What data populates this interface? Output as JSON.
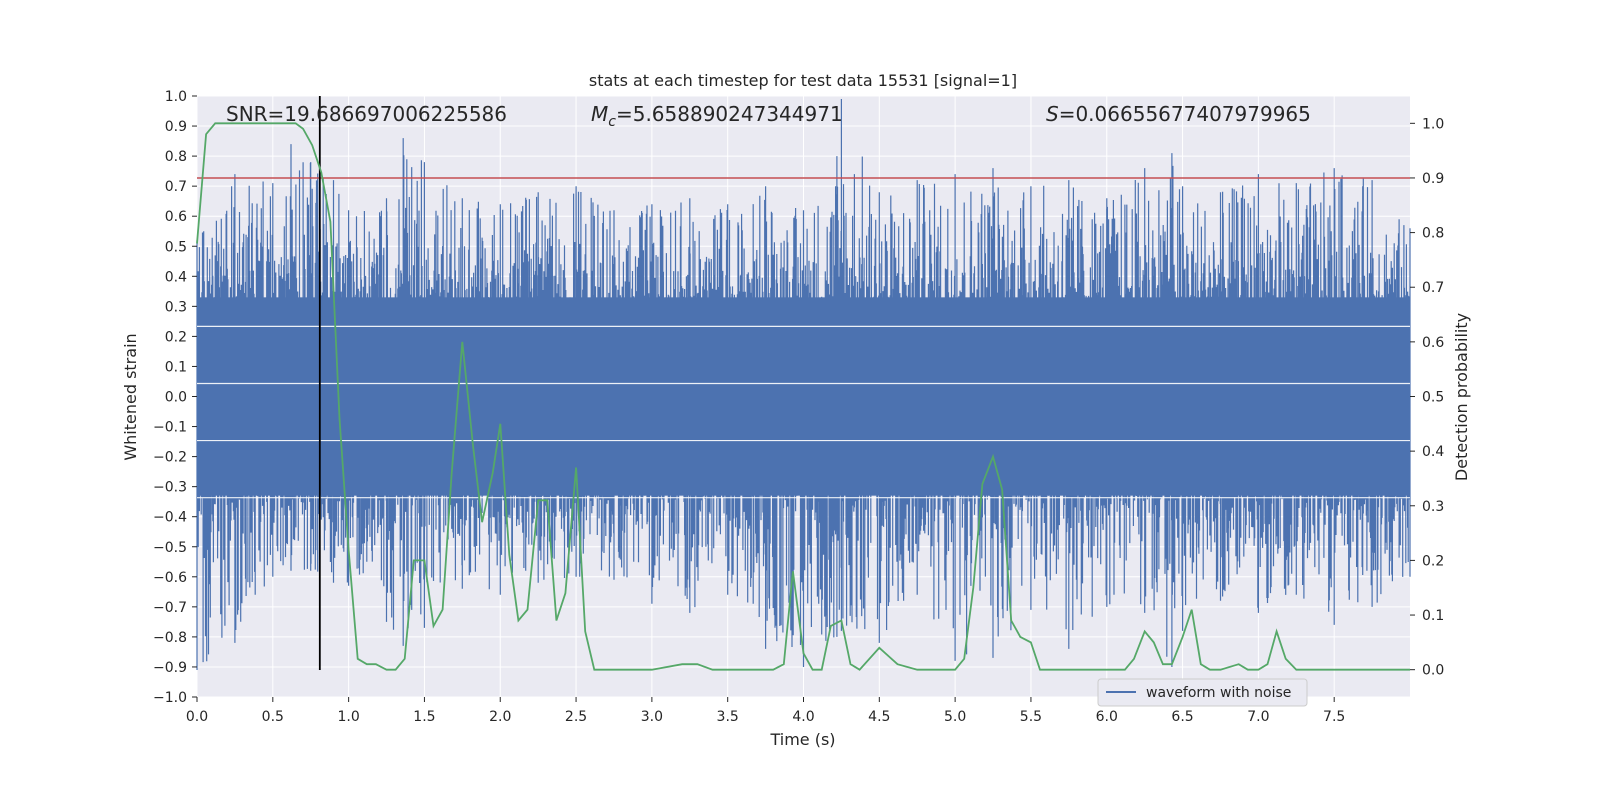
{
  "chart_data": {
    "type": "line",
    "title": "stats at each timestep for test data 15531 [signal=1]",
    "xlabel": "Time (s)",
    "ylabel_left": "Whitened strain",
    "ylabel_right": "Detection probability",
    "xlim": [
      0,
      8
    ],
    "ylim_left": [
      -1.0,
      1.0
    ],
    "ylim_right": [
      -0.05,
      1.05
    ],
    "x_ticks": [
      "0.0",
      "0.5",
      "1.0",
      "1.5",
      "2.0",
      "2.5",
      "3.0",
      "3.5",
      "4.0",
      "4.5",
      "5.0",
      "5.5",
      "6.0",
      "6.5",
      "7.0",
      "7.5"
    ],
    "y_ticks_left": [
      "1.0",
      "0.9",
      "0.8",
      "0.7",
      "0.6",
      "0.5",
      "0.4",
      "0.3",
      "0.2",
      "0.1",
      "0.0",
      "−0.1",
      "−0.2",
      "−0.3",
      "−0.4",
      "−0.5",
      "−0.6",
      "−0.7",
      "−0.8",
      "−0.9",
      "−1.0"
    ],
    "y_ticks_right": [
      "1.0",
      "0.9",
      "0.8",
      "0.7",
      "0.6",
      "0.5",
      "0.4",
      "0.3",
      "0.2",
      "0.1",
      "0.0"
    ],
    "grid": true,
    "legend_position": "lower-right",
    "annotations": {
      "snr": "SNR=19.686697006225586",
      "mc_symbol": "M",
      "mc_sub": "c",
      "mc_value": "=5.658890247344971",
      "s_symbol": "S",
      "s_value": "=0.06655677407979965"
    },
    "threshold_line": {
      "value": 0.9,
      "axis": "right",
      "color": "#c44e52"
    },
    "marker_line": {
      "x": 0.81,
      "y_from": -0.91,
      "y_to": 1.0,
      "color": "#000000"
    },
    "colors": {
      "waveform": "#4c72b0",
      "probability": "#55a868",
      "background": "#eaeaf2",
      "grid": "#ffffff"
    },
    "series": [
      {
        "name": "waveform with noise",
        "axis": "left",
        "envelope": {
          "x": [
            0.0,
            0.25,
            0.5,
            0.62,
            0.75,
            0.9,
            1.0,
            1.25,
            1.36,
            1.5,
            1.75,
            2.0,
            2.25,
            2.5,
            2.75,
            3.0,
            3.25,
            3.5,
            3.75,
            4.0,
            4.22,
            4.25,
            4.5,
            4.75,
            5.0,
            5.25,
            5.5,
            5.75,
            6.0,
            6.25,
            6.43,
            6.5,
            6.75,
            7.0,
            7.25,
            7.5,
            7.75,
            8.0
          ],
          "upper": [
            0.52,
            0.74,
            0.71,
            0.84,
            0.78,
            0.72,
            0.62,
            0.66,
            0.86,
            0.78,
            0.66,
            0.64,
            0.68,
            0.7,
            0.62,
            0.64,
            0.66,
            0.64,
            0.7,
            0.62,
            0.8,
            0.99,
            0.68,
            0.72,
            0.74,
            0.76,
            0.7,
            0.72,
            0.66,
            0.76,
            0.81,
            0.7,
            0.68,
            0.74,
            0.71,
            0.76,
            0.72,
            0.56
          ],
          "lower": [
            -0.91,
            -0.82,
            -0.6,
            -0.58,
            -0.58,
            -0.62,
            -0.63,
            -0.75,
            -0.83,
            -0.77,
            -0.64,
            -0.66,
            -0.62,
            -0.6,
            -0.61,
            -0.69,
            -0.72,
            -0.66,
            -0.84,
            -0.9,
            -0.8,
            -0.78,
            -0.82,
            -0.66,
            -0.88,
            -0.87,
            -0.71,
            -0.84,
            -0.7,
            -0.72,
            -0.9,
            -0.78,
            -0.68,
            -0.72,
            -0.66,
            -0.76,
            -0.7,
            -0.6
          ]
        }
      },
      {
        "name": "",
        "axis": "right",
        "x": [
          0.0,
          0.06,
          0.12,
          0.2,
          0.35,
          0.5,
          0.65,
          0.7,
          0.76,
          0.82,
          0.88,
          0.94,
          1.0,
          1.06,
          1.12,
          1.18,
          1.25,
          1.31,
          1.37,
          1.43,
          1.5,
          1.56,
          1.62,
          1.68,
          1.75,
          1.82,
          1.88,
          1.95,
          2.0,
          2.06,
          2.12,
          2.18,
          2.25,
          2.31,
          2.37,
          2.43,
          2.5,
          2.56,
          2.62,
          2.8,
          3.0,
          3.2,
          3.3,
          3.4,
          3.6,
          3.8,
          3.87,
          3.93,
          4.0,
          4.06,
          4.12,
          4.18,
          4.25,
          4.31,
          4.37,
          4.5,
          4.62,
          4.75,
          4.87,
          5.0,
          5.06,
          5.12,
          5.18,
          5.25,
          5.31,
          5.37,
          5.43,
          5.5,
          5.56,
          5.62,
          5.8,
          6.0,
          6.12,
          6.18,
          6.25,
          6.31,
          6.37,
          6.43,
          6.5,
          6.56,
          6.62,
          6.68,
          6.75,
          6.87,
          6.93,
          7.0,
          7.06,
          7.12,
          7.18,
          7.25,
          7.4,
          7.6,
          8.0
        ],
        "y": [
          0.78,
          0.98,
          1.0,
          1.0,
          1.0,
          1.0,
          1.0,
          0.99,
          0.96,
          0.91,
          0.82,
          0.46,
          0.22,
          0.02,
          0.01,
          0.01,
          0.0,
          0.0,
          0.02,
          0.2,
          0.2,
          0.08,
          0.11,
          0.36,
          0.6,
          0.41,
          0.27,
          0.36,
          0.45,
          0.21,
          0.09,
          0.11,
          0.31,
          0.31,
          0.09,
          0.14,
          0.37,
          0.07,
          0.0,
          0.0,
          0.0,
          0.01,
          0.01,
          0.0,
          0.0,
          0.0,
          0.01,
          0.18,
          0.03,
          0.0,
          0.0,
          0.08,
          0.09,
          0.01,
          0.0,
          0.04,
          0.01,
          0.0,
          0.0,
          0.0,
          0.02,
          0.15,
          0.34,
          0.39,
          0.33,
          0.09,
          0.06,
          0.05,
          0.0,
          0.0,
          0.0,
          0.0,
          0.0,
          0.02,
          0.07,
          0.05,
          0.01,
          0.01,
          0.06,
          0.11,
          0.01,
          0.0,
          0.0,
          0.01,
          0.0,
          0.0,
          0.01,
          0.07,
          0.02,
          0.0,
          0.0,
          0.0,
          0.0
        ]
      }
    ]
  }
}
